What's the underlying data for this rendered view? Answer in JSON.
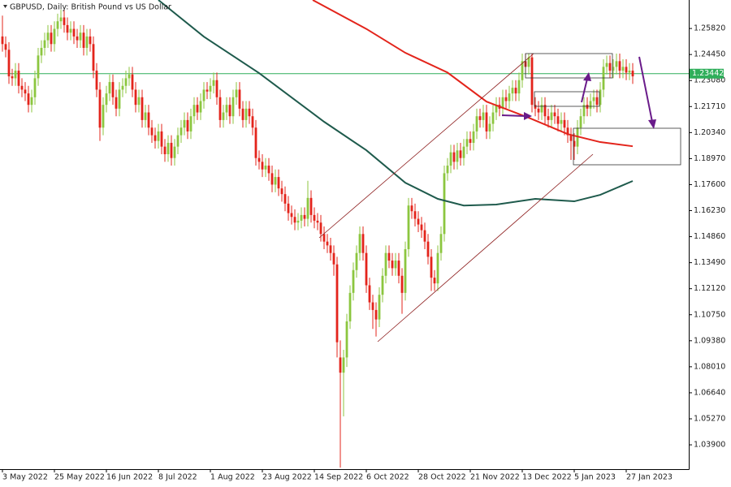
{
  "chart_data": {
    "type": "candlestick",
    "title": "GBPUSD, Daily:  British Pound vs US Dollar",
    "up_color": "#8cc63f",
    "down_color": "#e3241b",
    "xlim": [
      -0.75,
      211.25
    ],
    "xticks": [
      {
        "value": 0,
        "label": "3 May 2022"
      },
      {
        "value": 16,
        "label": "25 May 2022"
      },
      {
        "value": 32,
        "label": "16 Jun 2022"
      },
      {
        "value": 48,
        "label": "8 Jul 2022"
      },
      {
        "value": 64,
        "label": "1 Aug 2022"
      },
      {
        "value": 80,
        "label": "23 Aug 2022"
      },
      {
        "value": 96,
        "label": "14 Sep 2022"
      },
      {
        "value": 112,
        "label": "6 Oct 2022"
      },
      {
        "value": 128,
        "label": "28 Oct 2022"
      },
      {
        "value": 144,
        "label": "21 Nov 2022"
      },
      {
        "value": 160,
        "label": "13 Dec 2022"
      },
      {
        "value": 176,
        "label": "5 Jan 2023"
      },
      {
        "value": 192,
        "label": "27 Jan 2023"
      }
    ],
    "ylim": [
      1.0262,
      1.2732
    ],
    "yticks": [
      {
        "value": 1.2582,
        "label": "1.25820"
      },
      {
        "value": 1.2445,
        "label": "1.24450"
      },
      {
        "value": 1.2308,
        "label": "1.23080"
      },
      {
        "value": 1.2171,
        "label": "1.21710"
      },
      {
        "value": 1.2034,
        "label": "1.20340"
      },
      {
        "value": 1.1897,
        "label": "1.18970"
      },
      {
        "value": 1.176,
        "label": "1.17600"
      },
      {
        "value": 1.1623,
        "label": "1.16230"
      },
      {
        "value": 1.1486,
        "label": "1.14860"
      },
      {
        "value": 1.1349,
        "label": "1.13490"
      },
      {
        "value": 1.1212,
        "label": "1.12120"
      },
      {
        "value": 1.1075,
        "label": "1.10750"
      },
      {
        "value": 1.0938,
        "label": "1.09380"
      },
      {
        "value": 1.0801,
        "label": "1.08010"
      },
      {
        "value": 1.0664,
        "label": "1.06640"
      },
      {
        "value": 1.0527,
        "label": "1.05270"
      },
      {
        "value": 1.039,
        "label": "1.03900"
      }
    ],
    "current_price": 1.23442,
    "current_price_color": "#2fae5a",
    "open": [
      1.254,
      1.25,
      1.247,
      1.233,
      1.232,
      1.236,
      1.228,
      1.226,
      1.224,
      1.218,
      1.222,
      1.232,
      1.244,
      1.248,
      1.252,
      1.256,
      1.25,
      1.258,
      1.262,
      1.264,
      1.26,
      1.256,
      1.258,
      1.254,
      1.252,
      1.256,
      1.248,
      1.254,
      1.25,
      1.236,
      1.226,
      1.206,
      1.218,
      1.224,
      1.23,
      1.222,
      1.216,
      1.226,
      1.228,
      1.232,
      1.234,
      1.226,
      1.218,
      1.222,
      1.21,
      1.214,
      1.206,
      1.202,
      1.199,
      1.204,
      1.196,
      1.192,
      1.198,
      1.19,
      1.196,
      1.202,
      1.206,
      1.21,
      1.204,
      1.212,
      1.218,
      1.214,
      1.22,
      1.226,
      1.225,
      1.228,
      1.231,
      1.222,
      1.21,
      1.214,
      1.218,
      1.212,
      1.222,
      1.226,
      1.216,
      1.21,
      1.216,
      1.212,
      1.206,
      1.19,
      1.188,
      1.184,
      1.186,
      1.182,
      1.176,
      1.18,
      1.174,
      1.171,
      1.166,
      1.161,
      1.159,
      1.156,
      1.157,
      1.16,
      1.158,
      1.169,
      1.16,
      1.157,
      1.156,
      1.15,
      1.146,
      1.144,
      1.14,
      1.134,
      1.085,
      1.077,
      1.085,
      1.104,
      1.119,
      1.131,
      1.14,
      1.15,
      1.14,
      1.123,
      1.114,
      1.11,
      1.105,
      1.118,
      1.128,
      1.14,
      1.136,
      1.132,
      1.136,
      1.128,
      1.119,
      1.142,
      1.165,
      1.162,
      1.158,
      1.155,
      1.152,
      1.146,
      1.138,
      1.127,
      1.124,
      1.14,
      1.15,
      1.182,
      1.186,
      1.193,
      1.188,
      1.194,
      1.19,
      1.196,
      1.2,
      1.198,
      1.204,
      1.212,
      1.21,
      1.214,
      1.204,
      1.208,
      1.214,
      1.218,
      1.216,
      1.222,
      1.22,
      1.224,
      1.227,
      1.224,
      1.231,
      1.241,
      1.238,
      1.243,
      1.218,
      1.216,
      1.214,
      1.218,
      1.212,
      1.21,
      1.214,
      1.212,
      1.208,
      1.21,
      1.206,
      1.202,
      1.199,
      1.196,
      1.206,
      1.212,
      1.218,
      1.216,
      1.22,
      1.222,
      1.218,
      1.226,
      1.238,
      1.24,
      1.236,
      1.238,
      1.241,
      1.236,
      1.238,
      1.235,
      1.236
    ],
    "high": [
      1.265,
      1.254,
      1.251,
      1.237,
      1.24,
      1.24,
      1.232,
      1.23,
      1.228,
      1.226,
      1.236,
      1.248,
      1.252,
      1.256,
      1.26,
      1.26,
      1.262,
      1.266,
      1.268,
      1.268,
      1.264,
      1.262,
      1.262,
      1.258,
      1.26,
      1.26,
      1.258,
      1.258,
      1.254,
      1.24,
      1.23,
      1.222,
      1.228,
      1.234,
      1.234,
      1.226,
      1.23,
      1.232,
      1.236,
      1.238,
      1.238,
      1.23,
      1.226,
      1.226,
      1.218,
      1.218,
      1.21,
      1.206,
      1.208,
      1.208,
      1.2,
      1.202,
      1.202,
      1.2,
      1.206,
      1.21,
      1.214,
      1.214,
      1.216,
      1.222,
      1.222,
      1.224,
      1.23,
      1.23,
      1.232,
      1.235,
      1.235,
      1.226,
      1.218,
      1.222,
      1.222,
      1.226,
      1.23,
      1.23,
      1.22,
      1.22,
      1.22,
      1.216,
      1.21,
      1.194,
      1.192,
      1.19,
      1.19,
      1.186,
      1.184,
      1.184,
      1.178,
      1.175,
      1.17,
      1.165,
      1.163,
      1.161,
      1.164,
      1.164,
      1.178,
      1.173,
      1.164,
      1.161,
      1.16,
      1.154,
      1.15,
      1.148,
      1.144,
      1.138,
      1.094,
      1.089,
      1.108,
      1.123,
      1.135,
      1.144,
      1.154,
      1.154,
      1.144,
      1.127,
      1.118,
      1.114,
      1.122,
      1.132,
      1.144,
      1.144,
      1.14,
      1.14,
      1.14,
      1.132,
      1.146,
      1.169,
      1.169,
      1.166,
      1.162,
      1.159,
      1.156,
      1.15,
      1.142,
      1.131,
      1.144,
      1.154,
      1.186,
      1.19,
      1.197,
      1.197,
      1.198,
      1.198,
      1.2,
      1.204,
      1.204,
      1.208,
      1.216,
      1.216,
      1.218,
      1.218,
      1.212,
      1.218,
      1.222,
      1.222,
      1.226,
      1.226,
      1.228,
      1.231,
      1.231,
      1.235,
      1.245,
      1.245,
      1.245,
      1.245,
      1.222,
      1.22,
      1.222,
      1.222,
      1.216,
      1.218,
      1.218,
      1.216,
      1.214,
      1.214,
      1.21,
      1.206,
      1.203,
      1.21,
      1.216,
      1.222,
      1.222,
      1.224,
      1.226,
      1.226,
      1.23,
      1.242,
      1.244,
      1.244,
      1.242,
      1.245,
      1.245,
      1.242,
      1.242,
      1.24,
      1.24
    ],
    "low": [
      1.246,
      1.243,
      1.229,
      1.228,
      1.228,
      1.224,
      1.222,
      1.22,
      1.214,
      1.214,
      1.218,
      1.228,
      1.24,
      1.244,
      1.248,
      1.246,
      1.246,
      1.254,
      1.258,
      1.256,
      1.252,
      1.252,
      1.25,
      1.248,
      1.248,
      1.244,
      1.244,
      1.246,
      1.232,
      1.222,
      1.199,
      1.202,
      1.214,
      1.22,
      1.218,
      1.212,
      1.212,
      1.222,
      1.224,
      1.228,
      1.222,
      1.214,
      1.214,
      1.206,
      1.206,
      1.202,
      1.198,
      1.195,
      1.195,
      1.192,
      1.188,
      1.188,
      1.186,
      1.186,
      1.192,
      1.198,
      1.202,
      1.2,
      1.2,
      1.208,
      1.21,
      1.21,
      1.216,
      1.221,
      1.221,
      1.224,
      1.218,
      1.206,
      1.206,
      1.21,
      1.208,
      1.208,
      1.218,
      1.212,
      1.206,
      1.206,
      1.208,
      1.202,
      1.186,
      1.184,
      1.18,
      1.18,
      1.178,
      1.172,
      1.172,
      1.17,
      1.167,
      1.162,
      1.157,
      1.155,
      1.152,
      1.152,
      1.153,
      1.154,
      1.154,
      1.156,
      1.153,
      1.152,
      1.146,
      1.142,
      1.14,
      1.136,
      1.128,
      1.085,
      1.027,
      1.054,
      1.08,
      1.1,
      1.115,
      1.127,
      1.136,
      1.136,
      1.119,
      1.11,
      1.1,
      1.096,
      1.101,
      1.114,
      1.124,
      1.132,
      1.128,
      1.128,
      1.124,
      1.108,
      1.115,
      1.138,
      1.158,
      1.154,
      1.151,
      1.148,
      1.142,
      1.134,
      1.12,
      1.12,
      1.12,
      1.136,
      1.146,
      1.178,
      1.182,
      1.184,
      1.184,
      1.186,
      1.186,
      1.192,
      1.194,
      1.194,
      1.2,
      1.206,
      1.206,
      1.2,
      1.2,
      1.204,
      1.21,
      1.212,
      1.212,
      1.216,
      1.216,
      1.22,
      1.22,
      1.22,
      1.227,
      1.234,
      1.234,
      1.214,
      1.212,
      1.21,
      1.21,
      1.208,
      1.206,
      1.206,
      1.208,
      1.204,
      1.204,
      1.202,
      1.198,
      1.189,
      1.189,
      1.192,
      1.202,
      1.208,
      1.212,
      1.212,
      1.216,
      1.214,
      1.214,
      1.222,
      1.234,
      1.232,
      1.232,
      1.234,
      1.232,
      1.232,
      1.231,
      1.231,
      1.229
    ],
    "close": [
      1.25,
      1.247,
      1.233,
      1.232,
      1.236,
      1.228,
      1.226,
      1.224,
      1.218,
      1.222,
      1.232,
      1.244,
      1.248,
      1.252,
      1.256,
      1.25,
      1.258,
      1.262,
      1.264,
      1.26,
      1.256,
      1.258,
      1.254,
      1.252,
      1.256,
      1.248,
      1.254,
      1.25,
      1.236,
      1.226,
      1.206,
      1.218,
      1.224,
      1.23,
      1.222,
      1.216,
      1.226,
      1.228,
      1.232,
      1.234,
      1.226,
      1.218,
      1.222,
      1.21,
      1.214,
      1.206,
      1.202,
      1.199,
      1.204,
      1.196,
      1.192,
      1.198,
      1.19,
      1.196,
      1.202,
      1.206,
      1.21,
      1.204,
      1.212,
      1.218,
      1.214,
      1.22,
      1.226,
      1.225,
      1.228,
      1.231,
      1.222,
      1.21,
      1.214,
      1.218,
      1.212,
      1.222,
      1.226,
      1.216,
      1.21,
      1.216,
      1.212,
      1.206,
      1.19,
      1.188,
      1.184,
      1.186,
      1.182,
      1.176,
      1.18,
      1.174,
      1.171,
      1.166,
      1.161,
      1.159,
      1.156,
      1.157,
      1.16,
      1.158,
      1.169,
      1.16,
      1.157,
      1.156,
      1.15,
      1.146,
      1.144,
      1.14,
      1.134,
      1.093,
      1.077,
      1.085,
      1.104,
      1.119,
      1.131,
      1.14,
      1.15,
      1.14,
      1.123,
      1.114,
      1.11,
      1.105,
      1.118,
      1.128,
      1.14,
      1.136,
      1.132,
      1.136,
      1.128,
      1.119,
      1.142,
      1.165,
      1.162,
      1.158,
      1.155,
      1.152,
      1.146,
      1.138,
      1.127,
      1.124,
      1.14,
      1.15,
      1.182,
      1.186,
      1.193,
      1.188,
      1.194,
      1.19,
      1.196,
      1.2,
      1.198,
      1.204,
      1.212,
      1.21,
      1.214,
      1.204,
      1.208,
      1.214,
      1.218,
      1.216,
      1.222,
      1.22,
      1.224,
      1.227,
      1.224,
      1.231,
      1.241,
      1.238,
      1.243,
      1.218,
      1.216,
      1.214,
      1.218,
      1.212,
      1.21,
      1.214,
      1.212,
      1.208,
      1.21,
      1.206,
      1.202,
      1.199,
      1.196,
      1.206,
      1.212,
      1.218,
      1.216,
      1.22,
      1.222,
      1.218,
      1.226,
      1.238,
      1.24,
      1.236,
      1.238,
      1.241,
      1.236,
      1.238,
      1.235,
      1.236,
      1.233
    ],
    "lines": [
      {
        "color": "#e3241b",
        "x": [
          95.5,
          112,
          124,
          137,
          149,
          162,
          174,
          184,
          194
        ],
        "values": [
          1.2732,
          1.258,
          1.2454,
          1.235,
          1.2197,
          1.2112,
          1.2026,
          1.1984,
          1.1962
        ]
      },
      {
        "color": "#1e5a4c",
        "x": [
          48,
          62,
          79,
          99,
          112,
          124,
          134,
          142,
          152,
          164,
          176,
          184,
          194
        ],
        "values": [
          1.2732,
          1.2539,
          1.2347,
          1.2091,
          1.1941,
          1.177,
          1.1685,
          1.165,
          1.1655,
          1.1685,
          1.1672,
          1.1706,
          1.1779
        ]
      }
    ]
  }
}
